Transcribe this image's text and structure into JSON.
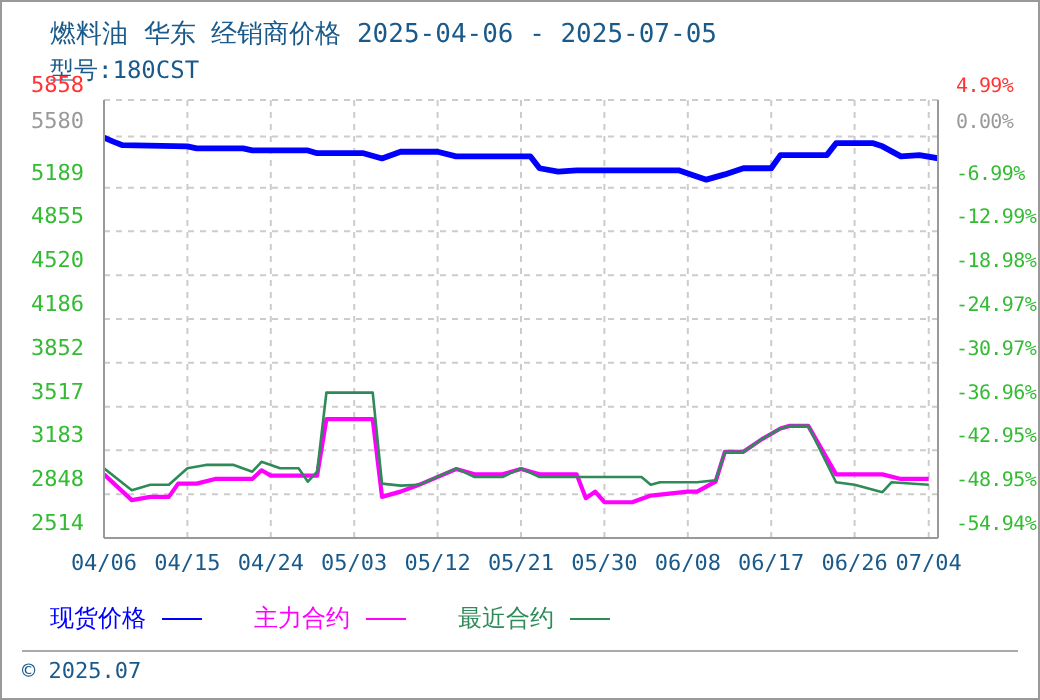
{
  "chart_data": {
    "type": "line",
    "title": "燃料油 华东 经销商价格 2025-04-06 - 2025-07-05",
    "subtitle": "型号:180CST",
    "xlim": [
      "2025-04-06",
      "2025-07-05"
    ],
    "xticks": [
      {
        "value": "2025-04-06",
        "label": "04/06"
      },
      {
        "value": "2025-04-15",
        "label": "04/15"
      },
      {
        "value": "2025-04-24",
        "label": "04/24"
      },
      {
        "value": "2025-05-03",
        "label": "05/03"
      },
      {
        "value": "2025-05-12",
        "label": "05/12"
      },
      {
        "value": "2025-05-21",
        "label": "05/21"
      },
      {
        "value": "2025-05-30",
        "label": "05/30"
      },
      {
        "value": "2025-06-08",
        "label": "06/08"
      },
      {
        "value": "2025-06-17",
        "label": "06/17"
      },
      {
        "value": "2025-06-26",
        "label": "06/26"
      },
      {
        "value": "2025-07-04",
        "label": "07/04"
      }
    ],
    "ylim": [
      2514,
      5858
    ],
    "yticks": [
      5858,
      5580,
      5189,
      4855,
      4520,
      4186,
      3852,
      3517,
      3183,
      2848,
      2514
    ],
    "y2lim": [
      -54.94,
      4.99
    ],
    "y2ticks": [
      {
        "value": 4.99,
        "label": "4.99%"
      },
      {
        "value": 0,
        "label": "0.00%"
      },
      {
        "value": -6.99,
        "label": "-6.99%"
      },
      {
        "value": -12.99,
        "label": "-12.99%"
      },
      {
        "value": -18.98,
        "label": "-18.98%"
      },
      {
        "value": -24.97,
        "label": "-24.97%"
      },
      {
        "value": -30.97,
        "label": "-30.97%"
      },
      {
        "value": -36.96,
        "label": "-36.96%"
      },
      {
        "value": -42.95,
        "label": "-42.95%"
      },
      {
        "value": -48.95,
        "label": "-48.95%"
      },
      {
        "value": -54.94,
        "label": "-54.94%"
      }
    ],
    "grid": true,
    "legend": "bottom",
    "marker": "none",
    "line_style": "solid",
    "annotations": [
      "© 2025.07"
    ],
    "series": [
      {
        "name": "现货价格",
        "color": "#0000ff",
        "x": [
          "2025-04-06",
          "2025-04-07",
          "2025-04-08",
          "2025-04-15",
          "2025-04-16",
          "2025-04-21",
          "2025-04-22",
          "2025-04-28",
          "2025-04-29",
          "2025-05-04",
          "2025-05-06",
          "2025-05-08",
          "2025-05-12",
          "2025-05-14",
          "2025-05-20",
          "2025-05-22",
          "2025-05-23",
          "2025-05-25",
          "2025-05-27",
          "2025-06-07",
          "2025-06-10",
          "2025-06-12",
          "2025-06-14",
          "2025-06-17",
          "2025-06-18",
          "2025-06-23",
          "2025-06-24",
          "2025-06-28",
          "2025-06-29",
          "2025-07-01",
          "2025-07-03",
          "2025-07-05"
        ],
        "values": [
          5570,
          5540,
          5513,
          5504,
          5489,
          5489,
          5473,
          5473,
          5452,
          5452,
          5412,
          5463,
          5463,
          5428,
          5428,
          5428,
          5337,
          5311,
          5321,
          5321,
          5250,
          5290,
          5337,
          5337,
          5437,
          5437,
          5528,
          5528,
          5504,
          5428,
          5437,
          5413
        ]
      },
      {
        "name": "主力合约",
        "color": "#ff00ff",
        "x": [
          "2025-04-06",
          "2025-04-09",
          "2025-04-11",
          "2025-04-13",
          "2025-04-14",
          "2025-04-16",
          "2025-04-18",
          "2025-04-22",
          "2025-04-23",
          "2025-04-24",
          "2025-04-29",
          "2025-04-30",
          "2025-05-05",
          "2025-05-06",
          "2025-05-08",
          "2025-05-10",
          "2025-05-14",
          "2025-05-16",
          "2025-05-19",
          "2025-05-21",
          "2025-05-23",
          "2025-05-27",
          "2025-05-28",
          "2025-05-29",
          "2025-05-30",
          "2025-06-02",
          "2025-06-04",
          "2025-06-08",
          "2025-06-09",
          "2025-06-11",
          "2025-06-12",
          "2025-06-14",
          "2025-06-16",
          "2025-06-18",
          "2025-06-19",
          "2025-06-21",
          "2025-06-24",
          "2025-06-29",
          "2025-07-01",
          "2025-07-04"
        ],
        "values": [
          3000,
          2803,
          2828,
          2828,
          2929,
          2929,
          2965,
          2965,
          3031,
          2990,
          2990,
          3421,
          3421,
          2828,
          2868,
          2920,
          3040,
          3000,
          3000,
          3040,
          3000,
          3000,
          2818,
          2868,
          2787,
          2787,
          2838,
          2868,
          2868,
          2944,
          3172,
          3172,
          3269,
          3350,
          3370,
          3370,
          3000,
          3000,
          2965,
          2965
        ]
      },
      {
        "name": "最近合约",
        "color": "#2e8b57",
        "x": [
          "2025-04-06",
          "2025-04-09",
          "2025-04-11",
          "2025-04-13",
          "2025-04-15",
          "2025-04-17",
          "2025-04-20",
          "2025-04-22",
          "2025-04-23",
          "2025-04-25",
          "2025-04-27",
          "2025-04-28",
          "2025-04-29",
          "2025-04-30",
          "2025-05-05",
          "2025-05-06",
          "2025-05-08",
          "2025-05-10",
          "2025-05-14",
          "2025-05-16",
          "2025-05-19",
          "2025-05-21",
          "2025-05-23",
          "2025-06-03",
          "2025-06-04",
          "2025-06-05",
          "2025-06-09",
          "2025-06-11",
          "2025-06-12",
          "2025-06-14",
          "2025-06-16",
          "2025-06-18",
          "2025-06-19",
          "2025-06-21",
          "2025-06-24",
          "2025-06-26",
          "2025-06-29",
          "2025-06-30",
          "2025-07-04"
        ],
        "values": [
          3046,
          2879,
          2920,
          2920,
          3046,
          3072,
          3072,
          3020,
          3096,
          3046,
          3046,
          2944,
          3020,
          3624,
          3624,
          2929,
          2914,
          2920,
          3046,
          2980,
          2980,
          3046,
          2980,
          2980,
          2920,
          2940,
          2940,
          2955,
          3172,
          3172,
          3269,
          3350,
          3370,
          3370,
          2940,
          2920,
          2864,
          2940,
          2920
        ]
      }
    ]
  }
}
